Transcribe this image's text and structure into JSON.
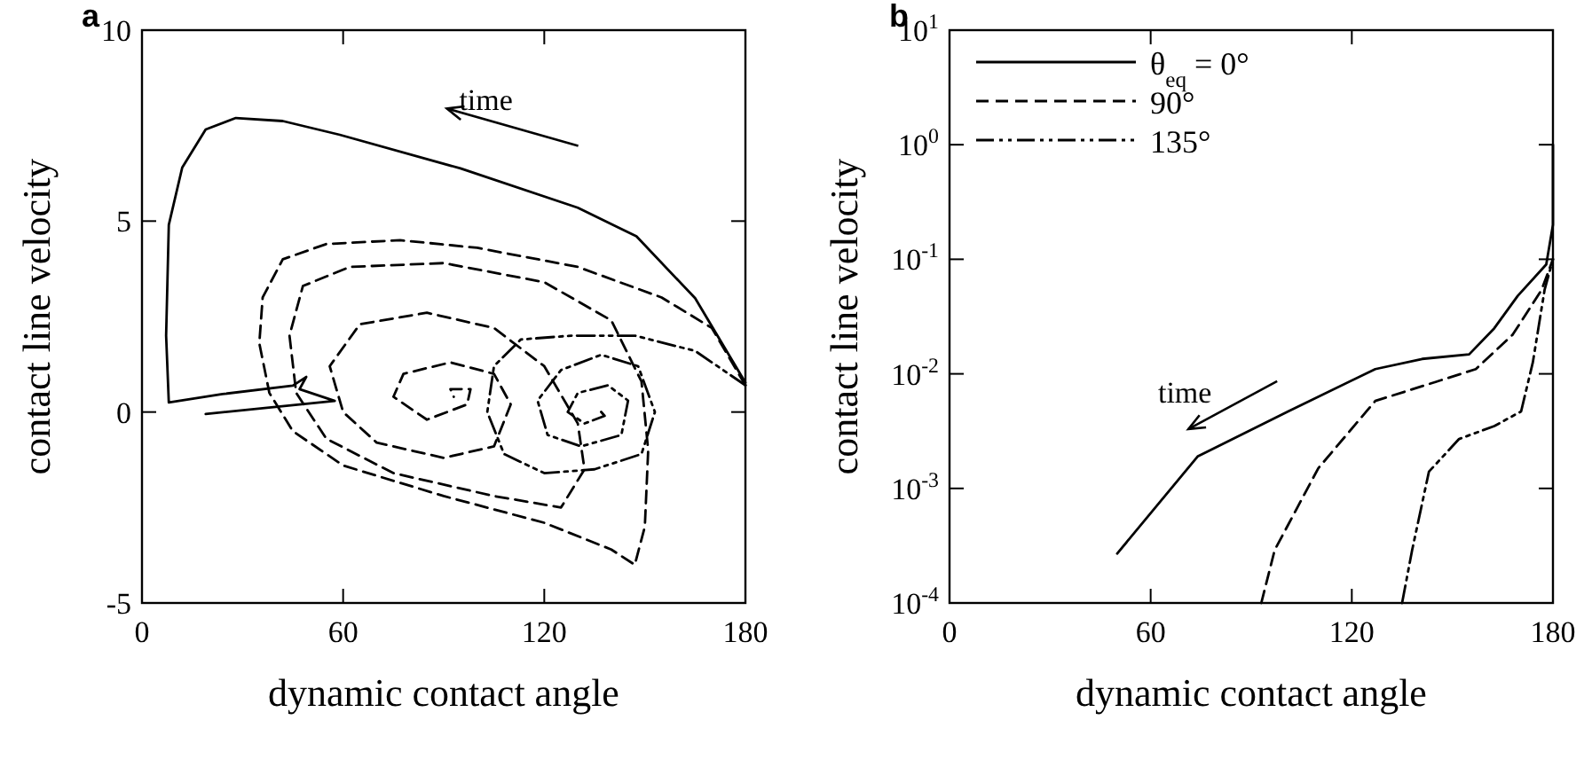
{
  "chart_data": [
    {
      "type": "line",
      "title": "a",
      "xlabel": "dynamic contact angle",
      "ylabel": "contact line velocity",
      "xlim": [
        0,
        180
      ],
      "ylim": [
        -5,
        10
      ],
      "xticks": [
        0,
        60,
        120,
        180
      ],
      "yticks": [
        -5,
        0,
        5,
        10
      ],
      "annotations": [
        "time"
      ],
      "series": [
        {
          "color": "#000000",
          "line_style": "solid",
          "x": [
            180,
            165,
            147.5,
            130,
            95,
            59,
            42,
            28,
            19,
            12,
            8,
            7.2,
            8,
            24,
            45,
            49,
            47,
            57.5,
            19
          ],
          "values": [
            0.77,
            2.98,
            4.6,
            5.35,
            6.38,
            7.26,
            7.62,
            7.7,
            7.4,
            6.4,
            4.9,
            2.0,
            0.25,
            0.47,
            0.69,
            0.92,
            0.6,
            0.29,
            -0.05
          ]
        },
        {
          "color": "#000000",
          "line_style": "dashed",
          "x": [
            180,
            170,
            155,
            130,
            100,
            77,
            55,
            42,
            36,
            35,
            38,
            45,
            60,
            90,
            120,
            140,
            147,
            150,
            151,
            149,
            140,
            120,
            90,
            62,
            48,
            44,
            46,
            55,
            75,
            105,
            125,
            132,
            130,
            120,
            105,
            85,
            65,
            56,
            60,
            70,
            90,
            105,
            110,
            105,
            92,
            78,
            75,
            85,
            97,
            98,
            92,
            93
          ],
          "values": [
            0.7,
            2.2,
            3.0,
            3.8,
            4.3,
            4.5,
            4.4,
            4.0,
            3.0,
            1.8,
            0.5,
            -0.5,
            -1.4,
            -2.2,
            -2.9,
            -3.6,
            -4.0,
            -3.0,
            -1.0,
            0.8,
            2.4,
            3.4,
            3.9,
            3.8,
            3.3,
            2.0,
            0.5,
            -0.7,
            -1.6,
            -2.2,
            -2.5,
            -1.5,
            -0.3,
            1.2,
            2.2,
            2.6,
            2.3,
            1.2,
            0,
            -0.8,
            -1.2,
            -0.9,
            0.2,
            1.0,
            1.3,
            1.0,
            0.4,
            -0.2,
            0.2,
            0.6,
            0.6,
            0.4
          ]
        },
        {
          "color": "#000000",
          "line_style": "dashdot",
          "x": [
            180,
            165,
            147,
            128,
            113,
            105,
            103,
            108,
            120,
            135,
            149,
            153,
            148,
            137,
            125,
            118,
            121,
            131,
            143,
            145,
            139,
            130,
            127,
            132,
            138,
            136
          ],
          "values": [
            0.7,
            1.6,
            2.0,
            2.0,
            1.9,
            1.2,
            0,
            -1.1,
            -1.6,
            -1.5,
            -1.1,
            0,
            1.2,
            1.5,
            1.1,
            0.3,
            -0.6,
            -0.9,
            -0.6,
            0.3,
            0.7,
            0.5,
            0,
            -0.3,
            -0.1,
            0.1
          ]
        }
      ]
    },
    {
      "type": "line",
      "title": "b",
      "xlabel": "dynamic contact angle",
      "ylabel": "contact line velocity",
      "xlim": [
        0,
        180
      ],
      "ylim": [
        0.0001,
        10
      ],
      "xticks": [
        0,
        60,
        120,
        180
      ],
      "log": true,
      "legend": "top left",
      "yticks": [
        {
          "value": 0.0001,
          "label": "10$^{-4}$"
        },
        {
          "value": 0.001,
          "label": "10$^{-3}$"
        },
        {
          "value": 0.01,
          "label": "10$^{-2}$"
        },
        {
          "value": 0.1,
          "label": "10$^{-1}$"
        },
        {
          "value": 1,
          "label": "10$^{0}$"
        },
        {
          "value": 10,
          "label": "10$^{1}$"
        }
      ],
      "annotations": [
        "time"
      ],
      "series": [
        {
          "name": "θ$_{eq}$ = 0°",
          "color": "#000000",
          "line_style": "solid",
          "x": [
            50,
            74,
            101,
            127,
            141,
            155,
            162.5,
            169.5,
            178,
            180,
            180
          ],
          "values": [
            0.00027,
            0.0019,
            0.0047,
            0.011,
            0.0135,
            0.0148,
            0.025,
            0.048,
            0.09,
            0.2,
            1
          ]
        },
        {
          "name": "90°",
          "color": "#000000",
          "line_style": "dashed",
          "x": [
            93,
            97,
            110,
            127,
            145,
            157,
            168,
            176.6,
            180
          ],
          "values": [
            0.0001,
            0.00029,
            0.0015,
            0.0058,
            0.0085,
            0.011,
            0.022,
            0.054,
            0.1
          ]
        },
        {
          "name": "135°",
          "color": "#000000",
          "line_style": "dashdot",
          "x": [
            135,
            138,
            143,
            152,
            162.5,
            170.5,
            174,
            177.5,
            180
          ],
          "values": [
            0.0001,
            0.00029,
            0.0014,
            0.0027,
            0.0035,
            0.0047,
            0.0126,
            0.054,
            0.1
          ]
        }
      ]
    }
  ]
}
